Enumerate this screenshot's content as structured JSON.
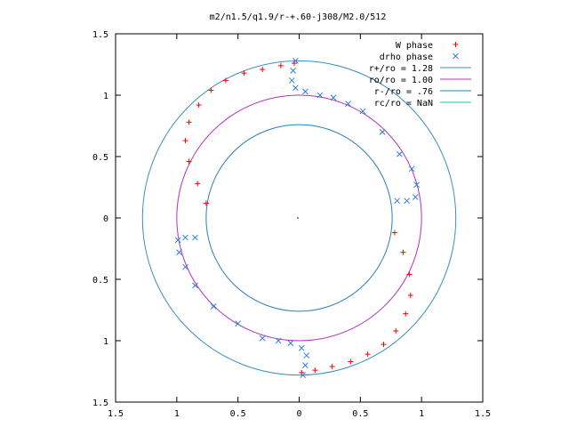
{
  "chart_data": {
    "type": "scatter",
    "title": "m2/n1.5/q1.9/r-+.60-j308/M2.0/512",
    "xlim": [
      -1.5,
      1.5
    ],
    "ylim": [
      -1.5,
      1.5
    ],
    "x_ticks": [
      -1.5,
      -1,
      -0.5,
      0,
      0.5,
      1,
      1.5
    ],
    "y_ticks": [
      -1.5,
      -1,
      -0.5,
      0,
      0.5,
      1,
      1.5
    ],
    "x_tick_labels": [
      "1.5",
      "1",
      "0.5",
      "0",
      "0.5",
      "1",
      "1.5"
    ],
    "y_tick_labels": [
      "1.5",
      "1",
      "0.5",
      "0",
      "0.5",
      "1",
      "1.5"
    ],
    "legend_position": "top-right",
    "grid": false,
    "circles": [
      {
        "name": "r+/ro = 1.28",
        "r": 1.28,
        "color": "#3a8fc0"
      },
      {
        "name": "ro/ro = 1.00",
        "r": 1.0,
        "color": "#b030c0"
      },
      {
        "name": "r-/ro = .76",
        "r": 0.76,
        "color": "#2c7fb8"
      },
      {
        "name": "rc/ro = NaN",
        "r": null,
        "color": "#20c0c0"
      }
    ],
    "series": [
      {
        "name": "W phase",
        "marker": "plus",
        "color": "#ff0000",
        "points": [
          [
            -0.76,
            0.12
          ],
          [
            -0.83,
            0.28
          ],
          [
            -0.9,
            0.46
          ],
          [
            -0.93,
            0.63
          ],
          [
            -0.9,
            0.78
          ],
          [
            -0.82,
            0.92
          ],
          [
            -0.72,
            1.04
          ],
          [
            -0.6,
            1.12
          ],
          [
            -0.45,
            1.18
          ],
          [
            -0.3,
            1.21
          ],
          [
            -0.15,
            1.24
          ],
          [
            -0.04,
            1.26
          ],
          [
            0.78,
            -0.12
          ],
          [
            0.85,
            -0.28
          ],
          [
            0.9,
            -0.46
          ],
          [
            0.91,
            -0.63
          ],
          [
            0.87,
            -0.78
          ],
          [
            0.79,
            -0.92
          ],
          [
            0.69,
            -1.03
          ],
          [
            0.56,
            -1.11
          ],
          [
            0.42,
            -1.17
          ],
          [
            0.27,
            -1.21
          ],
          [
            0.13,
            -1.24
          ],
          [
            0.02,
            -1.26
          ]
        ]
      },
      {
        "name": "drho phase",
        "marker": "cross",
        "color": "#2f7fe0",
        "points": [
          [
            -0.03,
            1.28
          ],
          [
            -0.05,
            1.2
          ],
          [
            -0.06,
            1.12
          ],
          [
            -0.03,
            1.06
          ],
          [
            0.05,
            1.03
          ],
          [
            0.17,
            1.0
          ],
          [
            0.28,
            0.98
          ],
          [
            0.4,
            0.93
          ],
          [
            0.52,
            0.87
          ],
          [
            0.68,
            0.7
          ],
          [
            0.82,
            0.52
          ],
          [
            0.92,
            0.4
          ],
          [
            0.96,
            0.27
          ],
          [
            0.95,
            0.17
          ],
          [
            0.88,
            0.14
          ],
          [
            0.8,
            0.14
          ],
          [
            0.03,
            -1.28
          ],
          [
            0.05,
            -1.2
          ],
          [
            0.06,
            -1.12
          ],
          [
            0.02,
            -1.06
          ],
          [
            -0.07,
            -1.02
          ],
          [
            -0.17,
            -1.0
          ],
          [
            -0.3,
            -0.98
          ],
          [
            -0.5,
            -0.86
          ],
          [
            -0.7,
            -0.72
          ],
          [
            -0.85,
            -0.55
          ],
          [
            -0.93,
            -0.4
          ],
          [
            -0.98,
            -0.28
          ],
          [
            -0.99,
            -0.18
          ],
          [
            -0.93,
            -0.16
          ],
          [
            -0.85,
            -0.16
          ]
        ]
      }
    ]
  }
}
